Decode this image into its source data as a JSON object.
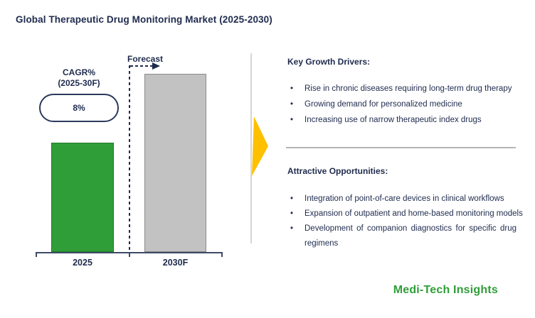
{
  "title": "Global Therapeutic Drug Monitoring Market (2025-2030)",
  "chart": {
    "cagr_title": "CAGR%",
    "cagr_subtitle": "(2025-30F)",
    "cagr_value": "8%",
    "forecast_label": "Forecast",
    "x_labels": [
      "2025",
      "2030F"
    ]
  },
  "chart_data": {
    "type": "bar",
    "title": "Global Therapeutic Drug Monitoring Market (2025-2030)",
    "categories": [
      "2025",
      "2030F"
    ],
    "values": [
      154,
      251
    ],
    "value_note": "no numeric axis shown; values are relative bar heights in pixels",
    "annotations": {
      "cagr": "8% (2025-30F)",
      "forecast_label": "Forecast"
    },
    "bar_colors": [
      "#2F9E38",
      "#C2C2C2"
    ],
    "legend": false,
    "grid": false
  },
  "panel": {
    "drivers": {
      "heading": "Key Growth Drivers:",
      "bullet": "•",
      "items": [
        "Rise in chronic diseases requiring long-term drug therapy",
        "Growing demand for personalized medicine",
        "Increasing use of narrow therapeutic index drugs"
      ]
    },
    "opportunities": {
      "heading": "Attractive Opportunities:",
      "bullet": "•",
      "items": [
        "Integration of point-of-care devices in clinical workflows",
        "Expansion of outpatient and home-based monitoring models",
        "Development of companion diagnostics for specific drug regimens"
      ]
    }
  },
  "logo": {
    "text": "Medi-Tech Insights",
    "color": "#2F9E38"
  },
  "colors": {
    "navy_text": "#1F2B4E",
    "green_bar": "#2F9E38",
    "gray_bar": "#C2C2C2",
    "gold_arrow": "#FFC000",
    "divider_gray": "#B5B5B5"
  }
}
